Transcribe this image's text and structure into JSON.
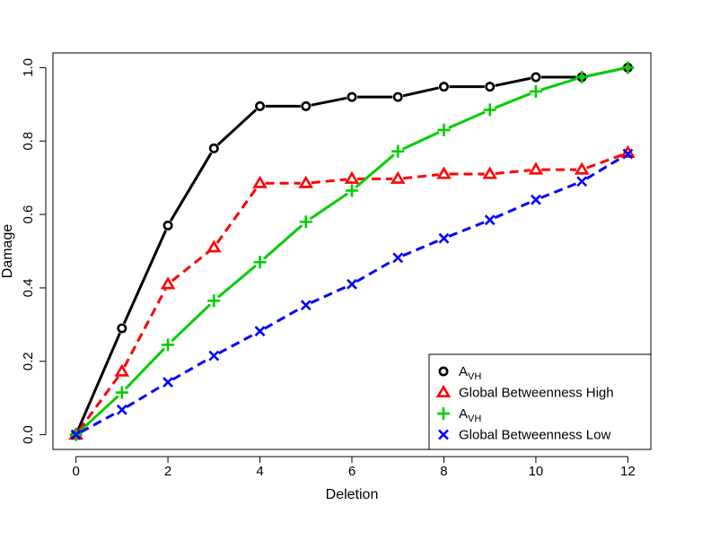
{
  "chart_data": {
    "type": "line",
    "xlabel": "Deletion",
    "ylabel": "Damage",
    "xlim": [
      -0.5,
      12.5
    ],
    "ylim": [
      -0.04,
      1.04
    ],
    "x_ticks": [
      "0",
      "2",
      "4",
      "6",
      "8",
      "10",
      "12"
    ],
    "y_ticks": [
      "0.0",
      "0.2",
      "0.4",
      "0.6",
      "0.8",
      "1.0"
    ],
    "grid": false,
    "legend_position": "bottom-right",
    "x": [
      0,
      1,
      2,
      3,
      4,
      5,
      6,
      7,
      8,
      9,
      10,
      11,
      12
    ],
    "series": [
      {
        "name": "A_VH (black)",
        "legend_main": "A",
        "legend_sub": "VH",
        "color": "#000000",
        "marker": "circle",
        "line": "solid",
        "values": [
          0.0,
          0.29,
          0.57,
          0.78,
          0.895,
          0.895,
          0.92,
          0.92,
          0.948,
          0.948,
          0.974,
          0.974,
          1.0
        ]
      },
      {
        "name": "Global Betweenness High",
        "legend_main": "Global Betweenness High",
        "legend_sub": "",
        "color": "#ff0000",
        "marker": "triangle",
        "line": "dashed",
        "values": [
          0.0,
          0.172,
          0.41,
          0.51,
          0.685,
          0.685,
          0.697,
          0.697,
          0.71,
          0.71,
          0.722,
          0.722,
          0.768
        ]
      },
      {
        "name": "A_VH (green)",
        "legend_main": "A",
        "legend_sub": "VH",
        "color": "#00cd00",
        "marker": "plus",
        "line": "solid",
        "values": [
          0.0,
          0.115,
          0.245,
          0.365,
          0.47,
          0.58,
          0.665,
          0.772,
          0.83,
          0.885,
          0.935,
          0.974,
          1.0
        ]
      },
      {
        "name": "Global Betweenness Low",
        "legend_main": "Global Betweenness Low",
        "legend_sub": "",
        "color": "#0000ff",
        "marker": "cross",
        "line": "dashed",
        "values": [
          0.0,
          0.068,
          0.143,
          0.215,
          0.282,
          0.353,
          0.41,
          0.482,
          0.535,
          0.585,
          0.64,
          0.69,
          0.765
        ]
      }
    ]
  }
}
